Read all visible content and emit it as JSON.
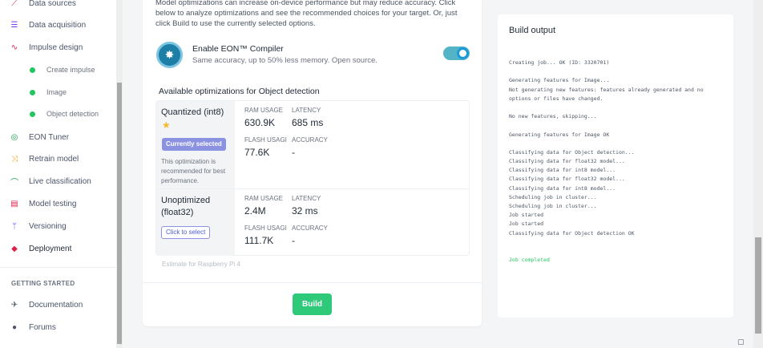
{
  "sidebar": {
    "items": [
      {
        "label": "Data sources",
        "icon": "wand-icon",
        "glyph": "⟋",
        "color": "#e11d48"
      },
      {
        "label": "Data acquisition",
        "icon": "database-icon",
        "glyph": "☰",
        "color": "#7c3aed"
      },
      {
        "label": "Impulse design",
        "icon": "pulse-icon",
        "glyph": "∿",
        "color": "#e11d48"
      },
      {
        "label": "Create impulse",
        "icon": "dot-icon",
        "sub": true
      },
      {
        "label": "Image",
        "icon": "dot-icon",
        "sub": true
      },
      {
        "label": "Object detection",
        "icon": "dot-icon",
        "sub": true
      },
      {
        "label": "EON Tuner",
        "icon": "tuner-icon",
        "glyph": "◎",
        "color": "#16a34a"
      },
      {
        "label": "Retrain model",
        "icon": "shuffle-icon",
        "glyph": "⤨",
        "color": "#f59e0b"
      },
      {
        "label": "Live classification",
        "icon": "live-icon",
        "glyph": "⌒",
        "color": "#16a34a"
      },
      {
        "label": "Model testing",
        "icon": "clipboard-icon",
        "glyph": "▤",
        "color": "#e11d48"
      },
      {
        "label": "Versioning",
        "icon": "branch-icon",
        "glyph": "ᛘ",
        "color": "#4f46e5"
      },
      {
        "label": "Deployment",
        "icon": "box-icon",
        "glyph": "◆",
        "color": "#e11d48",
        "active": true
      }
    ],
    "section_label": "GETTING STARTED",
    "bottom_items": [
      {
        "label": "Documentation",
        "icon": "rocket-icon",
        "glyph": "✈",
        "color": "#4b5563"
      },
      {
        "label": "Forums",
        "icon": "chat-bubbles-icon",
        "glyph": "●",
        "color": "#4b5563"
      }
    ]
  },
  "main": {
    "intro": "Model optimizations can increase on-device performance but may reduce accuracy. Click below to analyze optimizations and see the recommended choices for your target. Or, just click Build to use the currently selected options.",
    "eon": {
      "title": "Enable EON™ Compiler",
      "subtitle": "Same accuracy, up to 50% less memory. Open source.",
      "enabled": true
    },
    "optimizations_title": "Available optimizations for Object detection",
    "options": [
      {
        "name": "Quantized (int8)",
        "badge": "Currently selected",
        "note": "This optimization is recommended for best performance.",
        "ram_label": "RAM USAGE",
        "ram": "630.9K",
        "latency_label": "LATENCY",
        "latency": "685 ms",
        "flash_label": "FLASH USAGI",
        "flash": "77.6K",
        "accuracy_label": "ACCURACY",
        "accuracy": "-"
      },
      {
        "name": "Unoptimized (float32)",
        "button": "Click to select",
        "ram_label": "RAM USAGE",
        "ram": "2.4M",
        "latency_label": "LATENCY",
        "latency": "32 ms",
        "flash_label": "FLASH USAGI",
        "flash": "111.7K",
        "accuracy_label": "ACCURACY",
        "accuracy": "-"
      }
    ],
    "estimate": "Estimate for Raspberry Pi 4",
    "build_label": "Build"
  },
  "build_output": {
    "title": "Build output",
    "lines": [
      "Creating job... OK (ID: 3320701)",
      "",
      "Generating features for Image...",
      "Not generating new features: features already generated and no",
      "options or files have changed.",
      "",
      "No new features, skipping...",
      "",
      "Generating features for Image OK",
      "",
      "Classifying data for Object detection...",
      "Classifying data for float32 model...",
      "Classifying data for int8 model...",
      "Classifying data for float32 model...",
      "Classifying data for int8 model...",
      "Scheduling job in cluster...",
      "Scheduling job in cluster...",
      "Job started",
      "Job started",
      "Classifying data for Object detection OK",
      "",
      "",
      "Job completed"
    ],
    "success_line": "Job completed",
    "colors": {
      "success": "#22c55e",
      "build_button": "#2fc97a",
      "accent": "#1b9ad6"
    }
  }
}
